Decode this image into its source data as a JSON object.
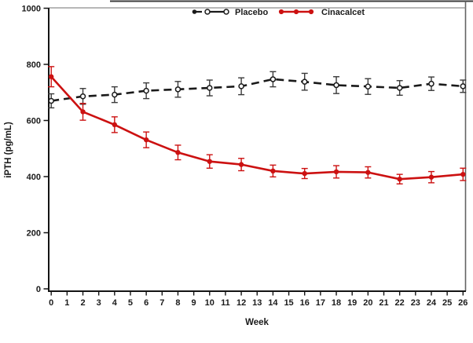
{
  "figure": {
    "legend": {
      "items": [
        {
          "label": "Placebo",
          "color": "#1a1a1a",
          "style": "dashed-line-open-circles"
        },
        {
          "label": "Cinacalcet",
          "color": "#cc1111",
          "style": "solid-line-filled-circles"
        }
      ]
    }
  },
  "chart_data": {
    "type": "line",
    "title": "",
    "xlabel": "Week",
    "ylabel": "iPTH (pg/mL)",
    "x_ticks": [
      0,
      1,
      2,
      3,
      4,
      5,
      6,
      7,
      8,
      9,
      10,
      11,
      12,
      13,
      14,
      15,
      16,
      17,
      18,
      19,
      20,
      21,
      22,
      23,
      24,
      25,
      26
    ],
    "y_ticks": [
      0,
      200,
      400,
      600,
      800,
      1000
    ],
    "xlim": [
      0,
      26
    ],
    "ylim": [
      0,
      1000
    ],
    "grid": false,
    "legend_position": "top-center",
    "error_bars": true,
    "x": [
      0,
      2,
      4,
      6,
      8,
      10,
      12,
      14,
      16,
      18,
      20,
      22,
      24,
      26
    ],
    "series": [
      {
        "name": "Placebo",
        "color": "#1a1a1a",
        "line": "dashed",
        "marker": "open-circle",
        "values": [
          670,
          686,
          692,
          706,
          711,
          716,
          722,
          747,
          738,
          726,
          721,
          716,
          731,
          722
        ],
        "errors": [
          25,
          28,
          28,
          28,
          28,
          28,
          30,
          27,
          30,
          30,
          28,
          26,
          24,
          22
        ]
      },
      {
        "name": "Cinacalcet",
        "color": "#cc1111",
        "line": "solid",
        "marker": "filled-circle",
        "values": [
          756,
          631,
          585,
          531,
          486,
          454,
          443,
          420,
          411,
          417,
          415,
          391,
          398,
          408
        ],
        "errors": [
          36,
          30,
          28,
          28,
          26,
          24,
          22,
          21,
          18,
          22,
          20,
          17,
          20,
          22
        ]
      }
    ]
  }
}
